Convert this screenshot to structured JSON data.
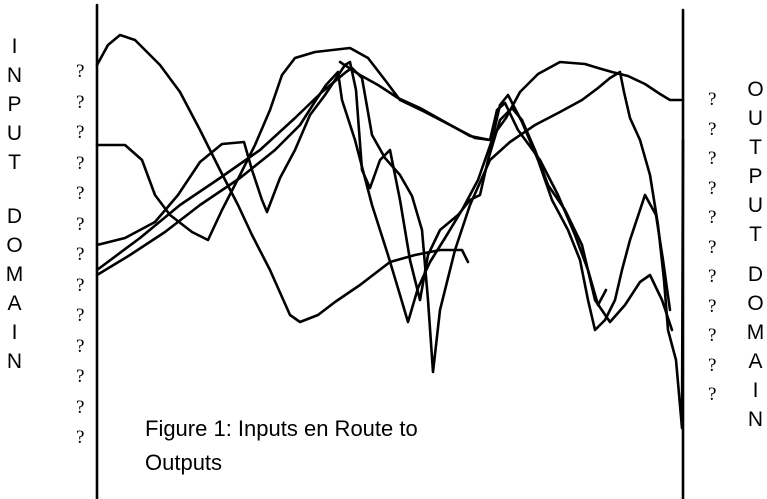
{
  "left_label": [
    "INPUT",
    "DOMAIN"
  ],
  "right_label": [
    "OUTPUT",
    "DOMAIN"
  ],
  "left_marks": [
    "?",
    "?",
    "?",
    "?",
    "?",
    "?",
    "?",
    "?",
    "?",
    "?",
    "?",
    "?",
    "?"
  ],
  "right_marks": [
    "?",
    "?",
    "?",
    "?",
    "?",
    "?",
    "?",
    "?",
    "?",
    "?",
    "?"
  ],
  "caption": "Figure 1: Inputs en Route to Outputs"
}
